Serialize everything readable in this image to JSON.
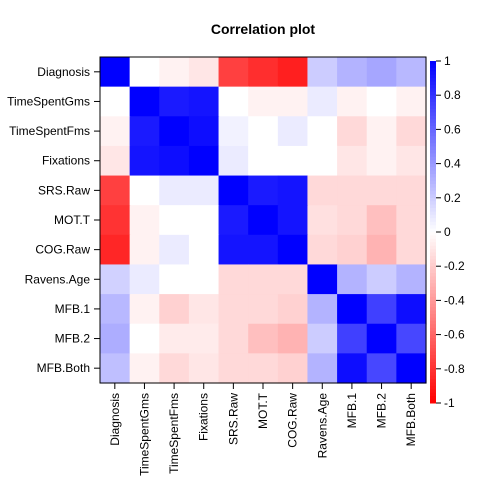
{
  "chart_data": {
    "type": "heatmap",
    "title": "Correlation plot",
    "variables": [
      "Diagnosis",
      "TimeSpentGms",
      "TimeSpentFms",
      "Fixations",
      "SRS.Raw",
      "MOT.T",
      "COG.Raw",
      "Ravens.Age",
      "MFB.1",
      "MFB.2",
      "MFB.Both"
    ],
    "matrix": [
      [
        1.0,
        0.0,
        -0.05,
        -0.1,
        -0.75,
        -0.82,
        -0.88,
        0.2,
        0.3,
        0.35,
        0.28
      ],
      [
        0.0,
        1.0,
        0.9,
        0.92,
        0.0,
        -0.05,
        -0.05,
        0.08,
        -0.05,
        0.0,
        -0.05
      ],
      [
        -0.05,
        0.9,
        1.0,
        0.95,
        0.05,
        0.0,
        0.08,
        0.0,
        -0.15,
        -0.05,
        -0.15
      ],
      [
        -0.1,
        0.92,
        0.95,
        1.0,
        0.08,
        0.0,
        0.0,
        0.0,
        -0.1,
        -0.05,
        -0.1
      ],
      [
        -0.75,
        0.0,
        0.08,
        0.08,
        1.0,
        0.9,
        0.92,
        -0.15,
        -0.15,
        -0.15,
        -0.15
      ],
      [
        -0.8,
        -0.05,
        0.0,
        0.0,
        0.9,
        1.0,
        0.92,
        -0.12,
        -0.15,
        -0.25,
        -0.15
      ],
      [
        -0.85,
        -0.05,
        0.08,
        0.0,
        0.92,
        0.92,
        1.0,
        -0.15,
        -0.18,
        -0.3,
        -0.15
      ],
      [
        0.18,
        0.08,
        0.0,
        0.0,
        -0.15,
        -0.15,
        -0.15,
        1.0,
        0.3,
        0.2,
        0.3
      ],
      [
        0.28,
        -0.05,
        -0.18,
        -0.1,
        -0.15,
        -0.15,
        -0.18,
        0.3,
        1.0,
        0.75,
        0.95
      ],
      [
        0.32,
        0.0,
        -0.08,
        -0.08,
        -0.15,
        -0.25,
        -0.3,
        0.2,
        0.75,
        1.0,
        0.72
      ],
      [
        0.25,
        -0.05,
        -0.15,
        -0.1,
        -0.15,
        -0.15,
        -0.18,
        0.3,
        0.95,
        0.72,
        1.0
      ]
    ],
    "colorbar": {
      "range": [
        -1,
        1
      ],
      "ticks": [
        "1",
        "0.8",
        "0.6",
        "0.4",
        "0.2",
        "0",
        "-0.2",
        "-0.4",
        "-0.6",
        "-0.8",
        "-1"
      ],
      "low_color": "#ff0000",
      "mid_color": "#ffffff",
      "high_color": "#0000ff"
    },
    "grid": false,
    "legend_position": "right"
  }
}
